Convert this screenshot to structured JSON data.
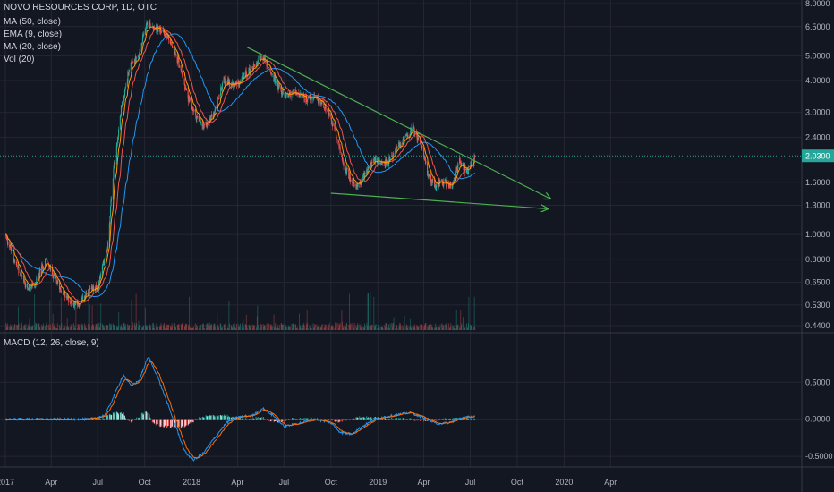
{
  "legend": {
    "title": "NOVO RESOURCES CORP, 1D, OTC",
    "ma50": "MA (50, close)",
    "ema9": "EMA (9, close)",
    "ma20": "MA (20, close)",
    "vol": "Vol (20)",
    "macd": "MACD (12, 26, close, 9)"
  },
  "colors": {
    "background": "#131722",
    "grid": "#242733",
    "up": "#26a69a",
    "down": "#ef5350",
    "ema": "#ff9800",
    "ma20": "#ef5350",
    "ma50": "#2196f3",
    "trendline": "#4caf50",
    "price_line": "#26a69a"
  },
  "chart_data": [
    {
      "type": "candlestick",
      "title": "NOVO RESOURCES CORP, 1D, OTC",
      "x_ticks": [
        "2017",
        "Apr",
        "Jul",
        "Oct",
        "2018",
        "Apr",
        "Jul",
        "Oct",
        "2019",
        "Apr",
        "Jul",
        "Oct",
        "2020",
        "Apr"
      ],
      "y_scale": "log",
      "y_ticks": [
        "8.0000",
        "6.5000",
        "5.0000",
        "4.0000",
        "3.0000",
        "2.4000",
        "1.6000",
        "1.3000",
        "1.0000",
        "0.8000",
        "0.6500",
        "0.5300",
        "0.4400"
      ],
      "last_price": "2.0300",
      "price_path": [
        [
          "2017-01-01",
          1.0
        ],
        [
          "2017-01-20",
          0.78
        ],
        [
          "2017-02-10",
          0.62
        ],
        [
          "2017-03-01",
          0.64
        ],
        [
          "2017-03-20",
          0.8
        ],
        [
          "2017-04-10",
          0.66
        ],
        [
          "2017-05-01",
          0.56
        ],
        [
          "2017-05-25",
          0.53
        ],
        [
          "2017-06-15",
          0.6
        ],
        [
          "2017-07-01",
          0.62
        ],
        [
          "2017-07-20",
          0.9
        ],
        [
          "2017-08-01",
          1.8
        ],
        [
          "2017-08-15",
          3.0
        ],
        [
          "2017-09-01",
          4.5
        ],
        [
          "2017-09-20",
          5.0
        ],
        [
          "2017-10-05",
          6.8
        ],
        [
          "2017-10-25",
          6.4
        ],
        [
          "2017-11-15",
          6.0
        ],
        [
          "2017-12-05",
          4.8
        ],
        [
          "2017-12-25",
          3.4
        ],
        [
          "2018-01-10",
          2.9
        ],
        [
          "2018-01-25",
          2.6
        ],
        [
          "2018-02-15",
          3.0
        ],
        [
          "2018-03-05",
          4.0
        ],
        [
          "2018-03-25",
          3.8
        ],
        [
          "2018-04-15",
          4.2
        ],
        [
          "2018-05-05",
          4.6
        ],
        [
          "2018-05-20",
          5.0
        ],
        [
          "2018-06-10",
          4.1
        ],
        [
          "2018-07-01",
          3.5
        ],
        [
          "2018-07-20",
          3.6
        ],
        [
          "2018-08-10",
          3.4
        ],
        [
          "2018-08-30",
          3.4
        ],
        [
          "2018-09-20",
          3.2
        ],
        [
          "2018-10-10",
          2.5
        ],
        [
          "2018-10-25",
          1.9
        ],
        [
          "2018-11-10",
          1.6
        ],
        [
          "2018-11-25",
          1.55
        ],
        [
          "2018-12-10",
          1.8
        ],
        [
          "2018-12-25",
          2.0
        ],
        [
          "2019-01-10",
          1.9
        ],
        [
          "2019-01-25",
          1.95
        ],
        [
          "2019-02-10",
          2.2
        ],
        [
          "2019-02-25",
          2.4
        ],
        [
          "2019-03-10",
          2.6
        ],
        [
          "2019-03-25",
          2.3
        ],
        [
          "2019-04-10",
          1.7
        ],
        [
          "2019-04-25",
          1.55
        ],
        [
          "2019-05-10",
          1.6
        ],
        [
          "2019-05-25",
          1.55
        ],
        [
          "2019-06-10",
          1.95
        ],
        [
          "2019-06-25",
          1.75
        ],
        [
          "2019-07-10",
          2.03
        ]
      ],
      "moving_averages": [
        {
          "name": "EMA (9, close)",
          "lag_days": 7
        },
        {
          "name": "MA (20, close)",
          "lag_days": 14
        },
        {
          "name": "MA (50, close)",
          "lag_days": 35
        }
      ],
      "trendlines": [
        {
          "from": [
            "2018-04-20",
            5.4
          ],
          "to": [
            "2019-12-05",
            1.38
          ],
          "arrow": true
        },
        {
          "from": [
            "2018-10-01",
            1.45
          ],
          "to": [
            "2019-11-30",
            1.26
          ],
          "arrow": true
        }
      ]
    },
    {
      "type": "macd",
      "title": "MACD (12, 26, close, 9)",
      "y_ticks": [
        "0.5000",
        "0.0000",
        "-0.5000"
      ],
      "ylim": [
        -0.62,
        0.95
      ],
      "macd_path": [
        [
          "2017-01-01",
          0.0
        ],
        [
          "2017-04-01",
          0.0
        ],
        [
          "2017-06-15",
          0.0
        ],
        [
          "2017-07-15",
          0.05
        ],
        [
          "2017-08-01",
          0.3
        ],
        [
          "2017-08-20",
          0.6
        ],
        [
          "2017-09-05",
          0.45
        ],
        [
          "2017-09-20",
          0.52
        ],
        [
          "2017-10-08",
          0.85
        ],
        [
          "2017-10-25",
          0.6
        ],
        [
          "2017-11-10",
          0.3
        ],
        [
          "2017-12-01",
          -0.1
        ],
        [
          "2017-12-20",
          -0.45
        ],
        [
          "2018-01-05",
          -0.55
        ],
        [
          "2018-01-25",
          -0.45
        ],
        [
          "2018-02-15",
          -0.25
        ],
        [
          "2018-03-10",
          -0.05
        ],
        [
          "2018-04-01",
          0.03
        ],
        [
          "2018-05-01",
          0.05
        ],
        [
          "2018-05-20",
          0.15
        ],
        [
          "2018-06-10",
          0.05
        ],
        [
          "2018-07-01",
          -0.1
        ],
        [
          "2018-08-01",
          -0.05
        ],
        [
          "2018-09-01",
          0.0
        ],
        [
          "2018-10-01",
          -0.05
        ],
        [
          "2018-10-20",
          -0.18
        ],
        [
          "2018-11-10",
          -0.2
        ],
        [
          "2018-12-01",
          -0.1
        ],
        [
          "2019-01-01",
          0.02
        ],
        [
          "2019-02-01",
          0.05
        ],
        [
          "2019-03-05",
          0.09
        ],
        [
          "2019-04-01",
          0.02
        ],
        [
          "2019-04-25",
          -0.06
        ],
        [
          "2019-05-20",
          -0.05
        ],
        [
          "2019-06-15",
          0.02
        ],
        [
          "2019-07-10",
          0.04
        ]
      ]
    }
  ]
}
